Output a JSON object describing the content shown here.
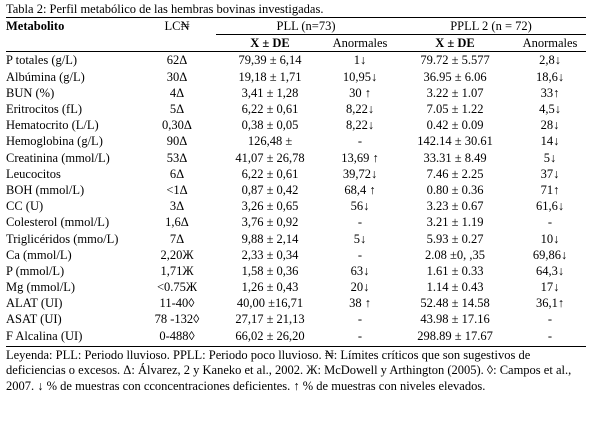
{
  "caption": "Tabla 2: Perfil metabólico de las hembras bovinas investigadas.",
  "header": {
    "col_metabolito": "Metabolito",
    "col_lc": "LC₦",
    "group_pll": "PLL (n=73)",
    "group_ppll": "PPLL  2 (n = 72)",
    "sub_mean": "X ± DE",
    "sub_abn": "Anormales",
    "sub_mean2": "X ± DE",
    "sub_abn2": "Anormales"
  },
  "rows": [
    {
      "m": "P totales (g/L)",
      "lc": "62Δ",
      "pll": "79,39 ± 6,14",
      "pll_a": "1↓",
      "ppll": "79.72 ± 5.577",
      "ppll_a": "2,8↓"
    },
    {
      "m": "Albúmina (g/L)",
      "lc": "30Δ",
      "pll": "19,18 ± 1,71",
      "pll_a": "10,95↓",
      "ppll": "36.95 ± 6.06",
      "ppll_a": "18,6↓"
    },
    {
      "m": "BUN (%)",
      "lc": "4Δ",
      "pll": "3,41 ± 1,28",
      "pll_a": "30 ↑",
      "ppll": "3.22 ± 1.07",
      "ppll_a": "33↑"
    },
    {
      "m": "Eritrocitos (fL)",
      "lc": "5Δ",
      "pll": "6,22 ± 0,61",
      "pll_a": "8,22↓",
      "ppll": "7.05 ± 1.22",
      "ppll_a": "4,5↓"
    },
    {
      "m": "Hematocrito (L/L)",
      "lc": "0,30Δ",
      "pll": "0,38 ± 0,05",
      "pll_a": "8,22↓",
      "ppll": "0.42 ± 0.09",
      "ppll_a": "28↓"
    },
    {
      "m": "Hemoglobina (g/L)",
      "lc": "90Δ",
      "pll": "126,48 ±",
      "pll_a": "-",
      "ppll": "142.14 ± 30.61",
      "ppll_a": "14↓"
    },
    {
      "m": "Creatinina (mmol/L)",
      "lc": "53Δ",
      "pll": "41,07 ± 26,78",
      "pll_a": "13,69 ↑",
      "ppll": "33.31 ± 8.49",
      "ppll_a": "5↓"
    },
    {
      "m": "Leucocitos",
      "lc": "6Δ",
      "pll": "6,22 ± 0,61",
      "pll_a": "39,72↓",
      "ppll": "7.46 ± 2.25",
      "ppll_a": "37↓"
    },
    {
      "m": "BOH (mmol/L)",
      "lc": "<1Δ",
      "pll": "0,87 ± 0,42",
      "pll_a": "68,4 ↑",
      "ppll": "0.80 ± 0.36",
      "ppll_a": "71↑"
    },
    {
      "m": "CC (U)",
      "lc": "3Δ",
      "pll": "3,26 ± 0,65",
      "pll_a": "56↓",
      "ppll": "3.23 ± 0.67",
      "ppll_a": "61,6↓"
    },
    {
      "m": "Colesterol (mmol/L)",
      "lc": "1,6Δ",
      "pll": "3,76 ± 0,92",
      "pll_a": "-",
      "ppll": "3.21 ± 1.19",
      "ppll_a": "-"
    },
    {
      "m": "Triglicéridos (mmo/L)",
      "lc": "7Δ",
      "pll": "9,88 ± 2,14",
      "pll_a": "5↓",
      "ppll": "5.93 ± 0.27",
      "ppll_a": "10↓"
    },
    {
      "m": "Ca (mmol/L)",
      "lc": "2,20Ж",
      "pll": "2,33 ± 0,34",
      "pll_a": "-",
      "ppll": "2.08 ±0, ,35",
      "ppll_a": "69,86↓"
    },
    {
      "m": "P (mmol/L)",
      "lc": "1,71Ж",
      "pll": "1,58 ± 0,36",
      "pll_a": "63↓",
      "ppll": "1.61 ± 0.33",
      "ppll_a": "64,3↓"
    },
    {
      "m": "Mg (mmol/L)",
      "lc": "<0.75Ж",
      "pll": "1,26 ± 0,43",
      "pll_a": "20↓",
      "ppll": "1.14 ± 0.43",
      "ppll_a": "17↓"
    },
    {
      "m": "ALAT (UI)",
      "lc": "11-40◊",
      "pll": "40,00 ±16,71",
      "pll_a": "38 ↑",
      "ppll": "52.48 ± 14.58",
      "ppll_a": "36,1↑"
    },
    {
      "m": "ASAT (UI)",
      "lc": "78 -132◊",
      "pll": "27,17 ± 21,13",
      "pll_a": "-",
      "ppll": "43.98 ± 17.16",
      "ppll_a": "-"
    },
    {
      "m": "F Alcalina (UI)",
      "lc": "0-488◊",
      "pll": "66,02 ± 26,20",
      "pll_a": "-",
      "ppll": "298.89 ± 17.67",
      "ppll_a": "-"
    }
  ],
  "legend": "Leyenda: PLL: Periodo lluvioso. PPLL: Periodo poco lluvioso. ₦: Límites críticos que son sugestivos de deficiencias o excesos. Δ: Álvarez, 2 y Kaneko et al., 2002. Ж: McDowell y Arthington (2005). ◊: Campos et al., 2007. ↓ % de muestras con cconcentraciones deficientes. ↑ % de muestras con niveles elevados."
}
